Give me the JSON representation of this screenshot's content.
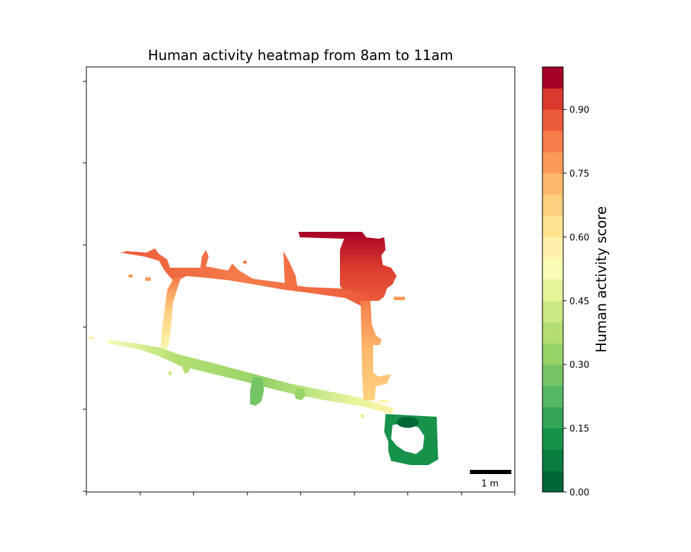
{
  "chart_data": {
    "type": "heatmap",
    "title": "Human activity heatmap from 8am to 11am",
    "xlabel": "",
    "ylabel": "",
    "x_tick_labels": [],
    "y_tick_labels": [],
    "colorbar": {
      "label": "Human activity score",
      "range": [
        0.0,
        1.0
      ],
      "levels": 20,
      "ticks": [
        0.0,
        0.15,
        0.3,
        0.45,
        0.6,
        0.75,
        0.9
      ],
      "tick_labels": [
        "0.00",
        "0.15",
        "0.30",
        "0.45",
        "0.60",
        "0.75",
        "0.90"
      ],
      "colors": [
        "#006837",
        "#0b7d40",
        "#17924a",
        "#34a556",
        "#55b766",
        "#75c567",
        "#96d368",
        "#b3df72",
        "#ccea84",
        "#e4f49a",
        "#f8fcb6",
        "#fff3ac",
        "#fee491",
        "#fed07f",
        "#fdb96b",
        "#fb9a58",
        "#f67c4a",
        "#eb5b3b",
        "#da3a2e",
        "#c41f27"
      ],
      "top_color": "#a50026",
      "placement": "right"
    },
    "scale_bar": {
      "label": "1 m",
      "length_m": 1
    },
    "regions": [
      {
        "name": "top-corridor",
        "value_range": [
          0.78,
          0.84
        ]
      },
      {
        "name": "left-corridor",
        "value_range": [
          0.5,
          0.8
        ]
      },
      {
        "name": "right-corridor",
        "value_range": [
          0.68,
          0.82
        ]
      },
      {
        "name": "bottom-corridor",
        "value_range": [
          0.28,
          0.5
        ]
      },
      {
        "name": "upper-right-room",
        "value_range": [
          0.8,
          0.97
        ]
      },
      {
        "name": "bottom-right-room",
        "value_range": [
          0.08,
          0.18
        ]
      }
    ]
  }
}
